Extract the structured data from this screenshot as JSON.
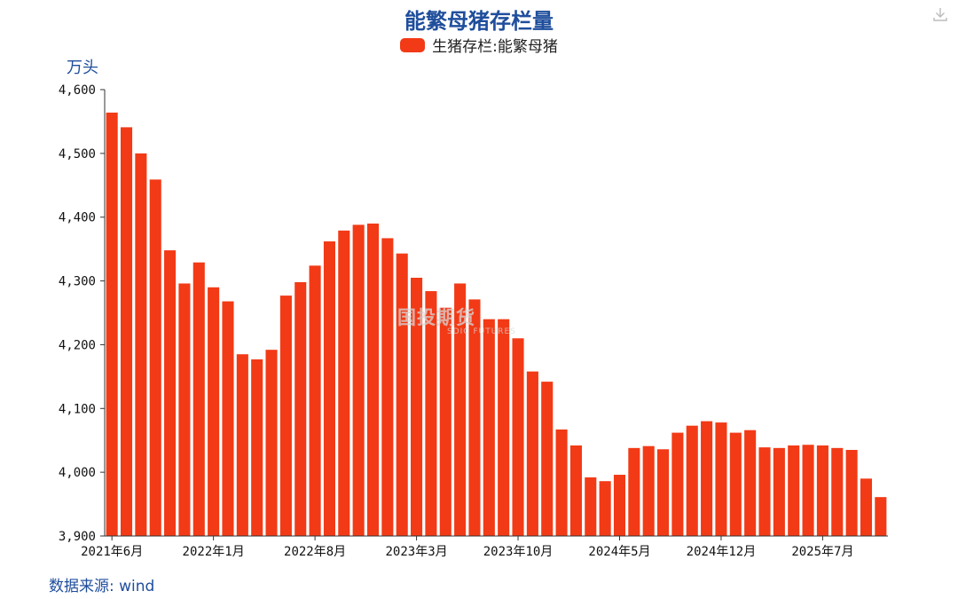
{
  "title": "能繁母猪存栏量",
  "unit_label": "万头",
  "source_label": "数据来源: wind",
  "watermark": {
    "name": "国投期货",
    "sub": "SDIC FUTURES"
  },
  "icons": {
    "download": "download-icon"
  },
  "colors": {
    "bar": "#f23a16",
    "title": "#1f4e9c"
  },
  "chart_data": {
    "type": "bar",
    "title": "能繁母猪存栏量",
    "ylabel": "万头",
    "xlabel": "",
    "ylim": [
      3900,
      4600
    ],
    "yticks": [
      "4,600",
      "4,500",
      "4,400",
      "4,300",
      "4,200",
      "4,100",
      "4,000",
      "3,900"
    ],
    "ytick_values": [
      4600,
      4500,
      4400,
      4300,
      4200,
      4100,
      4000,
      3900
    ],
    "grid": false,
    "legend_position": "top-center",
    "x_tick_labels": [
      {
        "index": 0,
        "label": "2021年6月"
      },
      {
        "index": 7,
        "label": "2022年1月"
      },
      {
        "index": 14,
        "label": "2022年8月"
      },
      {
        "index": 21,
        "label": "2023年3月"
      },
      {
        "index": 28,
        "label": "2023年10月"
      },
      {
        "index": 35,
        "label": "2024年5月"
      },
      {
        "index": 42,
        "label": "2024年12月"
      },
      {
        "index": 49,
        "label": "2025年7月"
      }
    ],
    "series": [
      {
        "name": "生猪存栏:能繁母猪",
        "values": [
          4564,
          4541,
          4500,
          4459,
          4348,
          4296,
          4329,
          4290,
          4268,
          4185,
          4177,
          4192,
          4277,
          4298,
          4324,
          4362,
          4379,
          4388,
          4390,
          4367,
          4343,
          4305,
          4284,
          4258,
          4296,
          4271,
          4240,
          4240,
          4210,
          4158,
          4142,
          4067,
          4042,
          3992,
          3986,
          3996,
          4038,
          4041,
          4036,
          4062,
          4073,
          4080,
          4078,
          4062,
          4066,
          4039,
          4038,
          4042,
          4043,
          4042,
          4038,
          4035,
          3990,
          3961
        ]
      }
    ]
  }
}
